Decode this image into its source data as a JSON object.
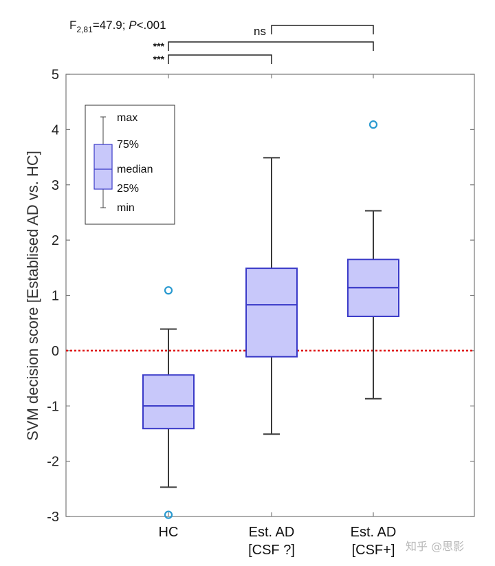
{
  "chart_data": {
    "type": "box",
    "categories": [
      [
        "HC"
      ],
      [
        "Est. AD",
        "[CSF ?]"
      ],
      [
        "Est. AD",
        "[CSF+]"
      ]
    ],
    "boxes": [
      {
        "min": -2.47,
        "q1": -1.41,
        "median": -1.0,
        "q3": -0.44,
        "max": 0.39,
        "outliers": [
          1.09,
          -2.97
        ]
      },
      {
        "min": -1.51,
        "q1": -0.11,
        "median": 0.83,
        "q3": 1.49,
        "max": 3.49,
        "outliers": []
      },
      {
        "min": -0.87,
        "q1": 0.62,
        "median": 1.14,
        "q3": 1.65,
        "max": 2.53,
        "outliers": [
          4.09
        ]
      }
    ],
    "ylim": [
      -3,
      5
    ],
    "yticks": [
      -3,
      -2,
      -1,
      0,
      1,
      2,
      3,
      4,
      5
    ],
    "ytick_labels": [
      "-3",
      "-2",
      "-1",
      "0",
      "1",
      "2",
      "3",
      "4",
      "5"
    ],
    "ylabel": "SVM decision score [Establised AD vs. HC]",
    "xlabel": "",
    "reference_line": {
      "y": 0
    },
    "stats": {
      "F": "F",
      "df": "2,81",
      "rest": "=47.9; ",
      "p_label": "P",
      "p_value": "<.001"
    },
    "significance": [
      {
        "from": 1,
        "to": 2,
        "label": "ns"
      },
      {
        "from": 0,
        "to": 2,
        "label": "***"
      },
      {
        "from": 0,
        "to": 1,
        "label": "***"
      }
    ],
    "legend": {
      "items": [
        "max",
        "75%",
        "median",
        "25%",
        "min"
      ]
    },
    "colors": {
      "box_fill": "#c8c8fa",
      "box_stroke": "#3a3ac8",
      "whisker": "#3a3a3a",
      "outlier": "#2a9ad0",
      "reference": "#dd1111",
      "axis": "#777777"
    }
  },
  "watermark": "知乎 @思影"
}
